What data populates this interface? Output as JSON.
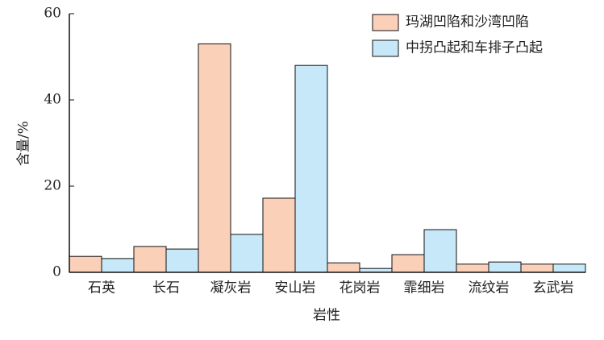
{
  "chart_data": {
    "type": "bar",
    "x_label": "岩性",
    "y_label": "含量/%",
    "categories": [
      "石英",
      "长石",
      "凝灰岩",
      "安山岩",
      "花岗岩",
      "霏细岩",
      "流纹岩",
      "玄武岩"
    ],
    "series": [
      {
        "name": "玛湖凹陷和沙湾凹陷",
        "color": "#fbd0b9",
        "values": [
          3.7,
          6.0,
          53,
          17.2,
          2.2,
          4.1,
          1.9,
          1.9
        ]
      },
      {
        "name": "中拐凸起和车排子凸起",
        "color": "#c6e8f8",
        "values": [
          3.2,
          5.4,
          8.8,
          48,
          0.9,
          9.9,
          2.4,
          1.9
        ]
      }
    ],
    "ylim": [
      0,
      60
    ],
    "yticks": [
      0,
      20,
      40,
      60
    ],
    "legend": "upper-right"
  }
}
